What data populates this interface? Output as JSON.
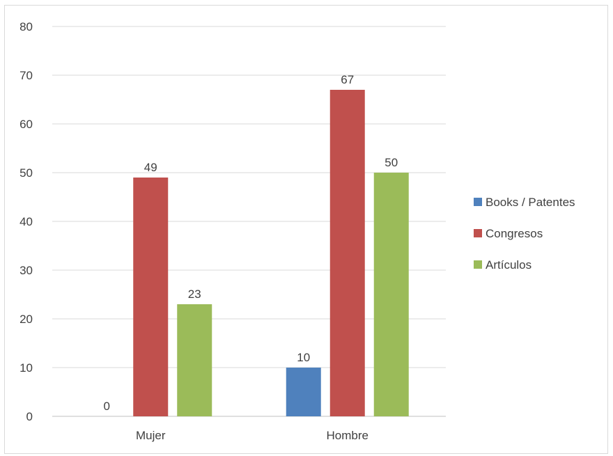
{
  "chart_data": {
    "type": "bar",
    "categories": [
      "Mujer",
      "Hombre"
    ],
    "series": [
      {
        "name": "Books / Patentes",
        "color": "#4f81bd",
        "values": [
          0,
          10
        ]
      },
      {
        "name": "Congresos",
        "color": "#c0504d",
        "values": [
          49,
          67
        ]
      },
      {
        "name": "Artículos",
        "color": "#9bbb59",
        "values": [
          23,
          50
        ]
      }
    ],
    "ylim": [
      0,
      80
    ],
    "yticks": [
      0,
      10,
      20,
      30,
      40,
      50,
      60,
      70,
      80
    ],
    "grid": true,
    "legend_position": "right",
    "data_labels": true
  }
}
